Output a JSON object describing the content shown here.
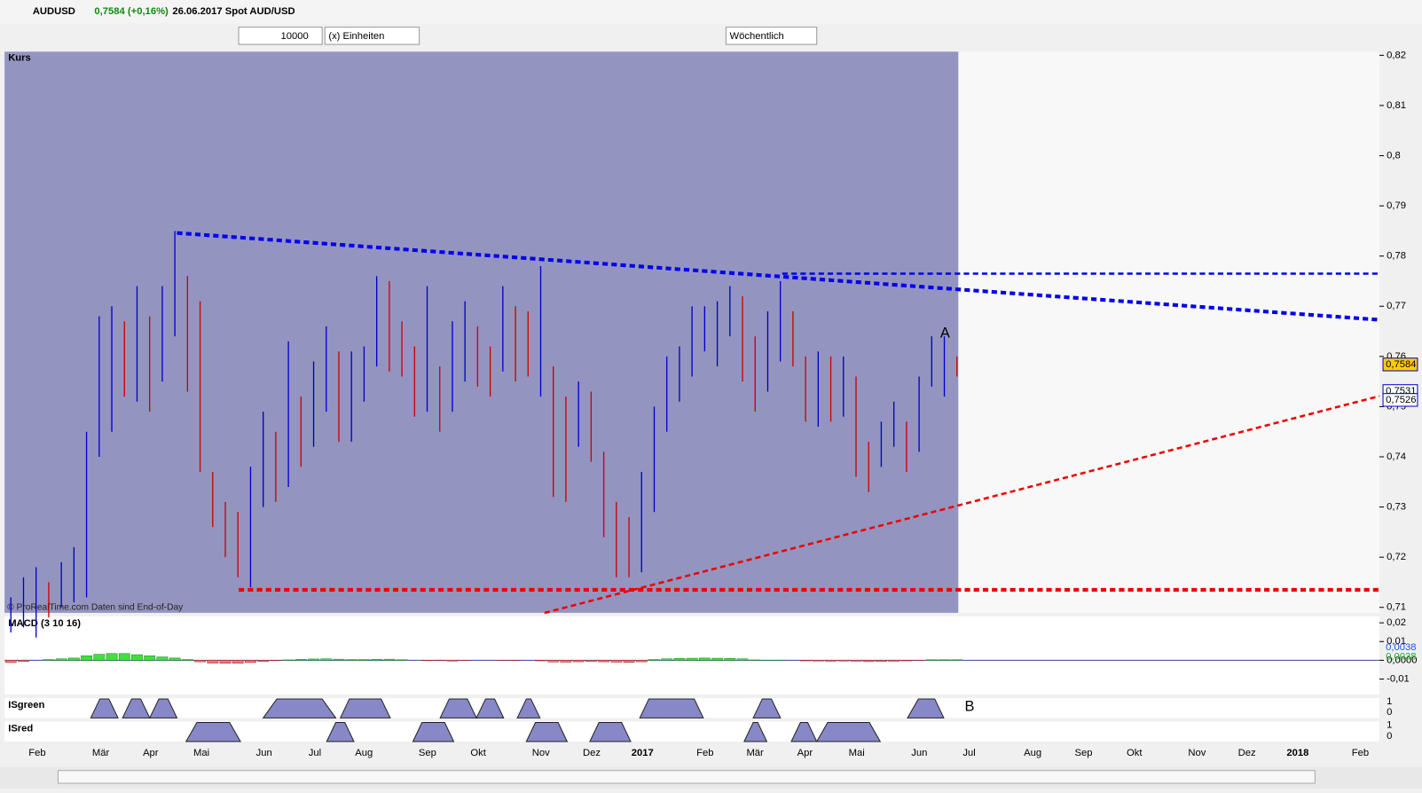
{
  "window": {
    "symbol": "AUDUSD",
    "change": "0,7584 (+0,16%)",
    "date": "26.06.2017",
    "instrument": "Spot AUD/USD"
  },
  "toolbar": {
    "quantity": "10000",
    "units": "(x) Einheiten",
    "period": "Wöchentlich"
  },
  "price_panel": {
    "label": "Kurs",
    "copyright": "© ProRealTime.com  Daten sind End-of-Day",
    "annotation_a": "A",
    "annotation_b": "B",
    "ylim": [
      0.71,
      0.82
    ],
    "yticks": [
      {
        "value": 0.82,
        "label": "0,82"
      },
      {
        "value": 0.81,
        "label": "0,81"
      },
      {
        "value": 0.8,
        "label": "0,8"
      },
      {
        "value": 0.79,
        "label": "0,79"
      },
      {
        "value": 0.78,
        "label": "0,78"
      },
      {
        "value": 0.77,
        "label": "0,77"
      },
      {
        "value": 0.76,
        "label": "0,76"
      },
      {
        "value": 0.75,
        "label": "0,75"
      },
      {
        "value": 0.74,
        "label": "0,74"
      },
      {
        "value": 0.73,
        "label": "0,73"
      },
      {
        "value": 0.72,
        "label": "0,72"
      },
      {
        "value": 0.71,
        "label": "0,71"
      }
    ],
    "price_tags": [
      {
        "value": 0.7584,
        "label": "0,7584",
        "color": "#ffcc00"
      },
      {
        "value": 0.7531,
        "label": "0,7531",
        "color": "#ffffff"
      },
      {
        "value": 0.7526,
        "label": "0,7526",
        "color": "#ffffff"
      }
    ],
    "highs": [
      0.712,
      0.716,
      0.718,
      0.715,
      0.719,
      0.722,
      0.745,
      0.768,
      0.77,
      0.767,
      0.774,
      0.768,
      0.774,
      0.785,
      0.776,
      0.771,
      0.737,
      0.731,
      0.729,
      0.738,
      0.749,
      0.745,
      0.763,
      0.752,
      0.759,
      0.766,
      0.761,
      0.761,
      0.762,
      0.776,
      0.775,
      0.767,
      0.762,
      0.774,
      0.758,
      0.767,
      0.771,
      0.766,
      0.762,
      0.774,
      0.77,
      0.769,
      0.778,
      0.758,
      0.752,
      0.755,
      0.753,
      0.741,
      0.731,
      0.728,
      0.737,
      0.75,
      0.76,
      0.762,
      0.77,
      0.77,
      0.771,
      0.774,
      0.772,
      0.764,
      0.769,
      0.775,
      0.769,
      0.76,
      0.761,
      0.76,
      0.76,
      0.756,
      0.743,
      0.747,
      0.751,
      0.747,
      0.756,
      0.764,
      0.764,
      0.76
    ],
    "lows": [
      0.705,
      0.706,
      0.704,
      0.708,
      0.71,
      0.711,
      0.712,
      0.74,
      0.745,
      0.752,
      0.751,
      0.749,
      0.755,
      0.764,
      0.753,
      0.737,
      0.726,
      0.72,
      0.716,
      0.714,
      0.73,
      0.731,
      0.734,
      0.738,
      0.742,
      0.749,
      0.743,
      0.743,
      0.751,
      0.758,
      0.757,
      0.756,
      0.748,
      0.749,
      0.745,
      0.749,
      0.755,
      0.754,
      0.752,
      0.757,
      0.755,
      0.756,
      0.752,
      0.732,
      0.731,
      0.742,
      0.739,
      0.724,
      0.716,
      0.716,
      0.717,
      0.729,
      0.745,
      0.751,
      0.756,
      0.761,
      0.758,
      0.764,
      0.755,
      0.749,
      0.753,
      0.759,
      0.758,
      0.747,
      0.746,
      0.747,
      0.748,
      0.736,
      0.733,
      0.738,
      0.742,
      0.737,
      0.741,
      0.754,
      0.752,
      0.756
    ],
    "trend_lines": [
      {
        "color": "#0000ee",
        "start": 0.7846,
        "end": 0.7673
      },
      {
        "color": "#0000ee",
        "start": 0.7765,
        "end": 0.7765
      },
      {
        "color": "#ee0000",
        "start": 0.7135,
        "end": 0.7135
      },
      {
        "color": "#ee0000",
        "start": 0.7089,
        "end": 0.7521
      }
    ]
  },
  "macd_panel": {
    "label": "MACD (3 10 16)",
    "ylim": [
      -0.0182,
      0.0234
    ],
    "yticks": [
      {
        "value": 0.02,
        "label": "0,02"
      },
      {
        "value": 0.01,
        "label": "0,01"
      },
      {
        "value": 0,
        "label": "0,0000"
      },
      {
        "value": -0.01,
        "label": "-0,01"
      }
    ],
    "tags": [
      {
        "value": 0.0038,
        "label": "0,0038",
        "color": "#2050ff"
      },
      {
        "value": 0.0038,
        "label": "0,0038",
        "color": "#22aa22"
      }
    ],
    "histogram": [
      -0.0012,
      -0.0006,
      0,
      0.0004,
      0.0008,
      0.0012,
      0.0024,
      0.0032,
      0.0036,
      0.0036,
      0.003,
      0.0024,
      0.0018,
      0.0012,
      0.0004,
      -0.0008,
      -0.0015,
      -0.0016,
      -0.0016,
      -0.0012,
      -0.0006,
      -0.0002,
      0.0002,
      0.0005,
      0.0007,
      0.0008,
      0.0006,
      0.0004,
      0.0004,
      0.0005,
      0.0006,
      0.0003,
      0,
      -0.0002,
      -0.0002,
      -0.0004,
      -0.0001,
      0,
      0,
      -0.0001,
      -0.0001,
      0,
      -0.0003,
      -0.0009,
      -0.001,
      -0.0008,
      -0.0006,
      -0.0008,
      -0.001,
      -0.0011,
      -0.0008,
      0.0004,
      0.0008,
      0.001,
      0.0011,
      0.0012,
      0.0011,
      0.001,
      0.0008,
      0.0002,
      0.0001,
      0.0001,
      0,
      -0.0003,
      -0.0004,
      -0.0005,
      -0.0004,
      -0.0005,
      -0.0007,
      -0.0006,
      -0.0005,
      -0.0003,
      -0.0001,
      0.0003,
      0.0003,
      0.0003
    ]
  },
  "isgreen_panel": {
    "label": "ISgreen",
    "top": "1",
    "bottom": "0"
  },
  "isred_panel": {
    "label": "ISred",
    "top": "1",
    "bottom": "0"
  },
  "months": [
    "Feb",
    "Mär",
    "Apr",
    "Mai",
    "Jun",
    "Jul",
    "Aug",
    "Sep",
    "Okt",
    "Nov",
    "Dez",
    "2017",
    "Feb",
    "Mär",
    "Apr",
    "Mai",
    "Jun",
    "Jul",
    "Aug",
    "Sep",
    "Okt",
    "Nov",
    "Dez",
    "2018",
    "Feb"
  ]
}
